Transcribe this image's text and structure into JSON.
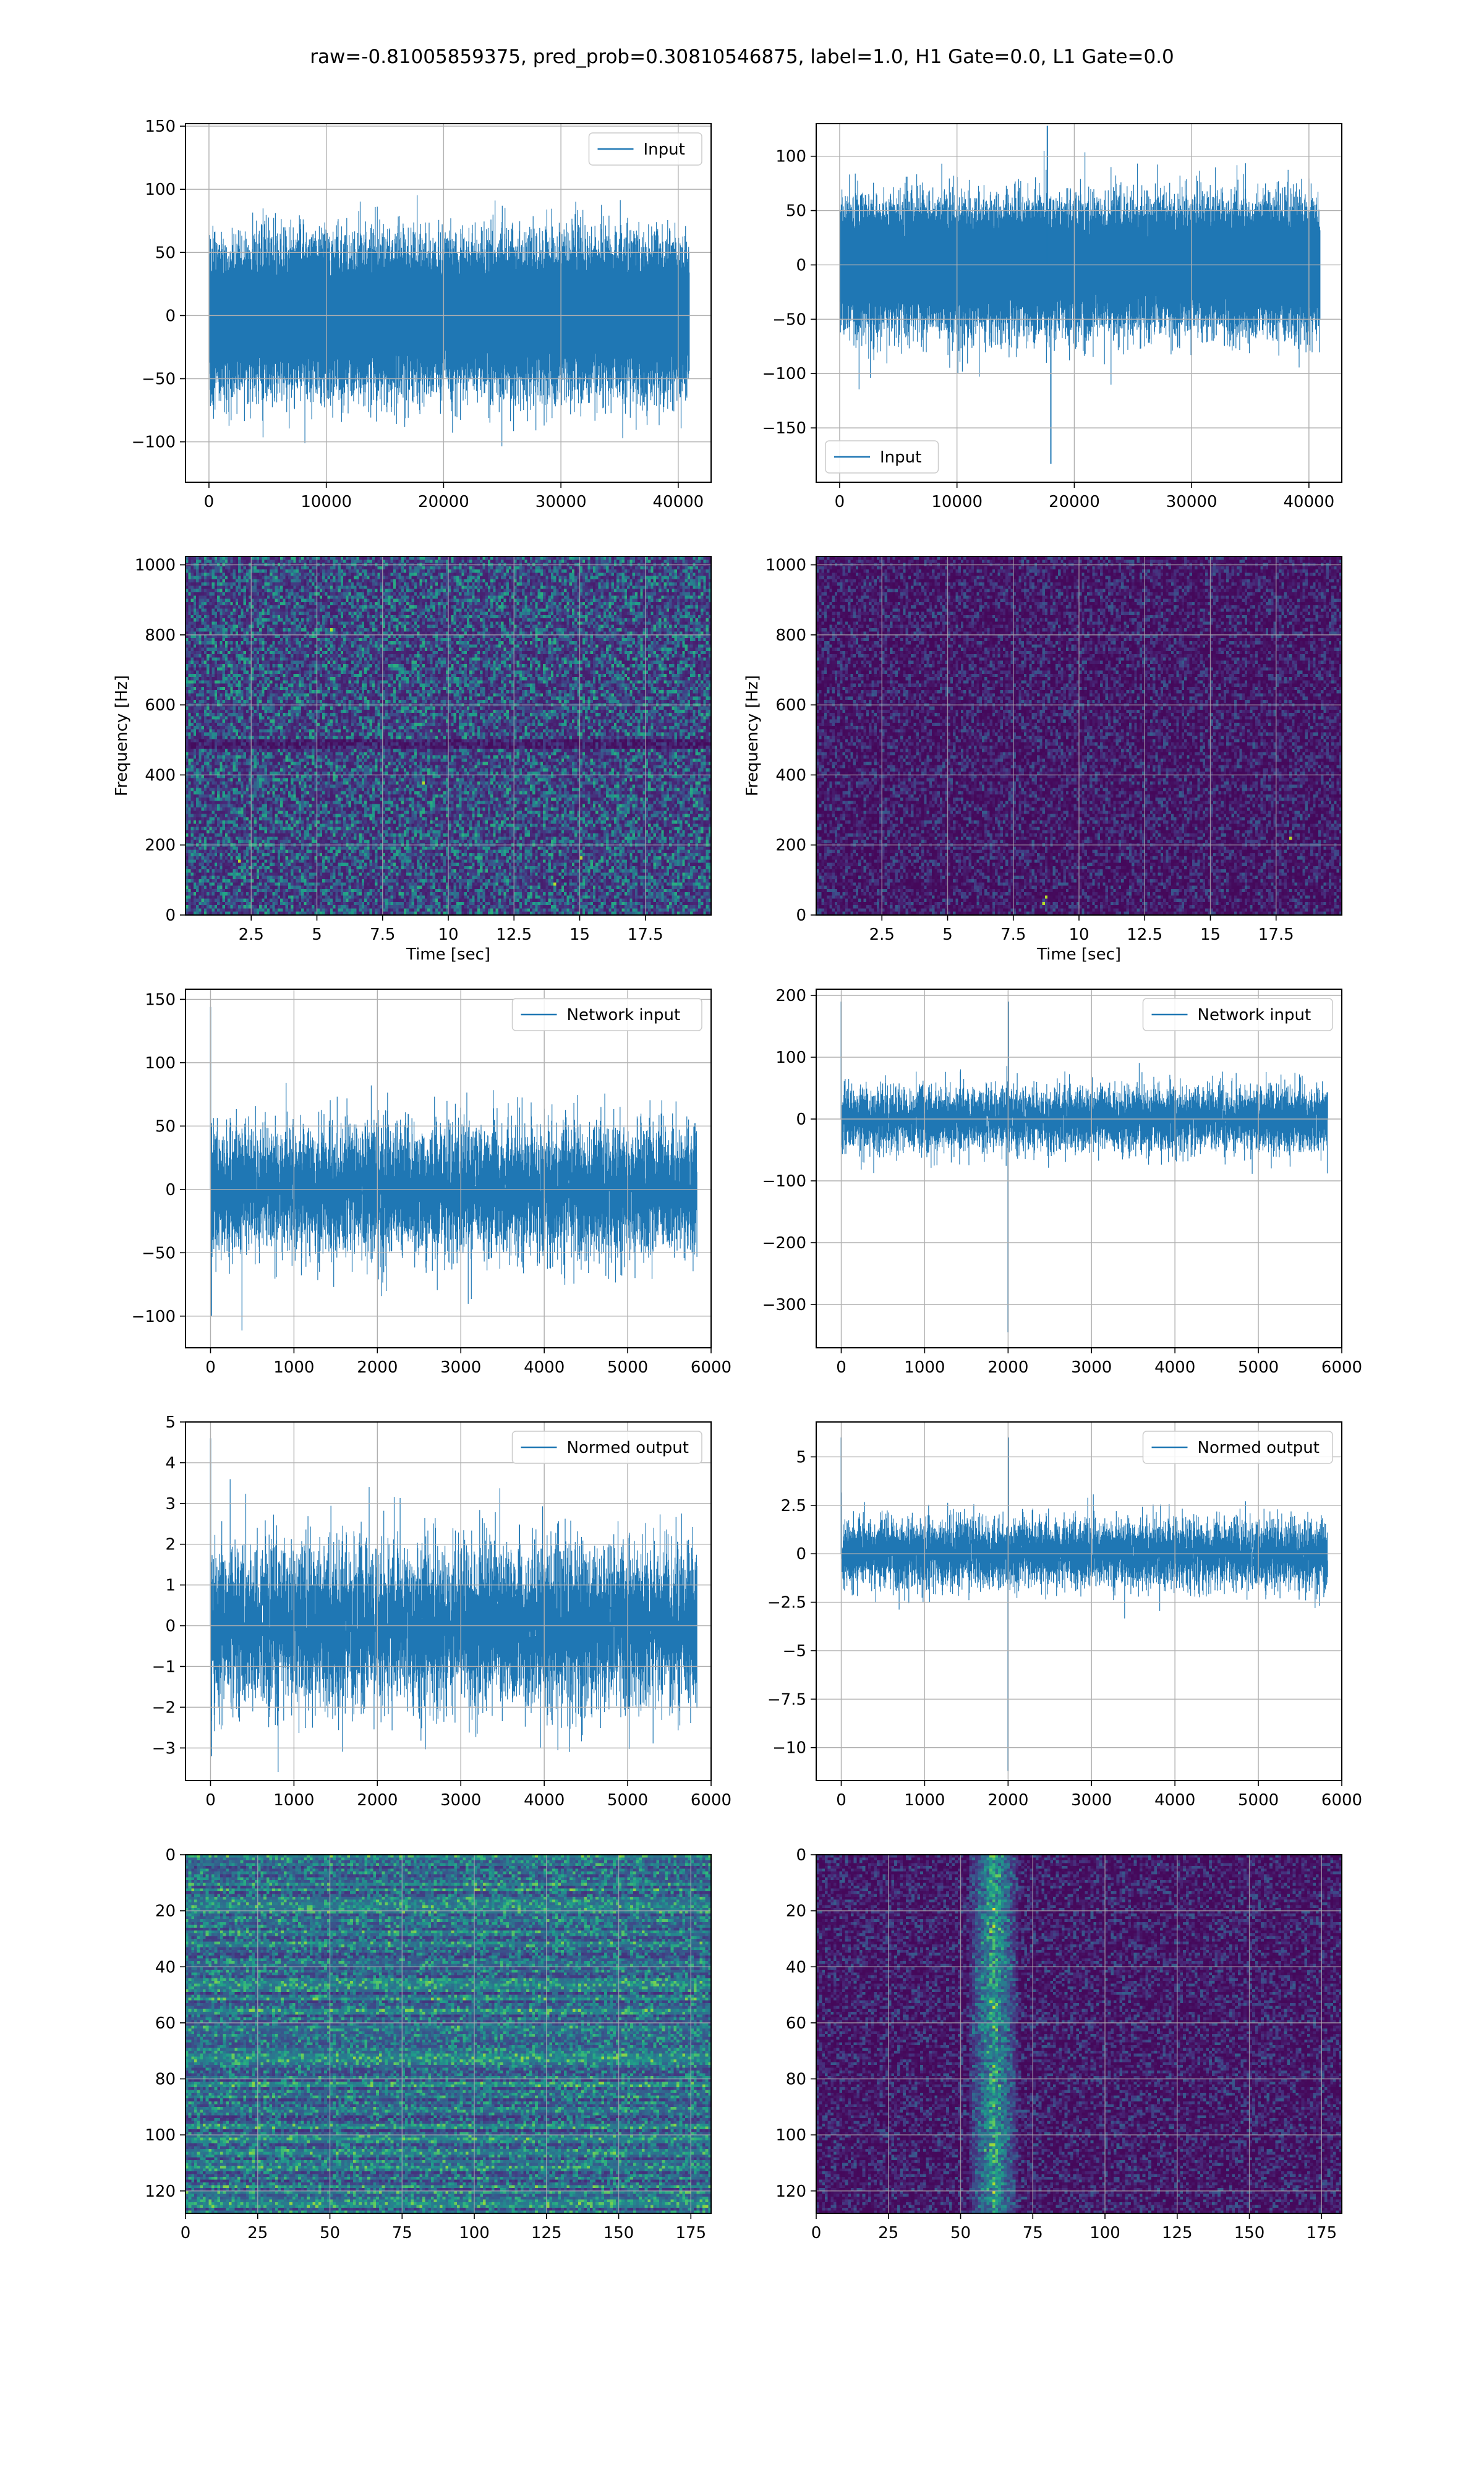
{
  "figure": {
    "suptitle": "raw=-0.81005859375, pred_prob=0.30810546875, label=1.0, H1 Gate=0.0, L1 Gate=0.0"
  },
  "chart_data": [
    {
      "id": "r0c0",
      "type": "line",
      "legend": "Input",
      "legend_loc": "upper right",
      "xlim": [
        -2000,
        42800
      ],
      "ylim": [
        -132,
        152
      ],
      "xticks": [
        0,
        10000,
        20000,
        30000,
        40000
      ],
      "yticks": [
        -100,
        -50,
        0,
        50,
        100,
        150
      ],
      "xlabel": "",
      "ylabel": "",
      "grid": true,
      "signal": {
        "n": 40960,
        "noise_std": 26,
        "spikes": []
      }
    },
    {
      "id": "r0c1",
      "type": "line",
      "legend": "Input",
      "legend_loc": "lower left",
      "xlim": [
        -2000,
        42800
      ],
      "ylim": [
        -200,
        130
      ],
      "xticks": [
        0,
        10000,
        20000,
        30000,
        40000
      ],
      "yticks": [
        -150,
        -100,
        -50,
        0,
        50,
        100
      ],
      "xlabel": "",
      "ylabel": "",
      "grid": true,
      "signal": {
        "n": 40960,
        "noise_std": 26,
        "spikes": [
          [
            18000,
            -183
          ],
          [
            17700,
            128
          ]
        ]
      }
    },
    {
      "id": "r1c0",
      "type": "heatmap",
      "subtype": "spectrogram",
      "xlim": [
        0,
        20
      ],
      "ylim": [
        0,
        1024
      ],
      "xticks": [
        2.5,
        5.0,
        7.5,
        10.0,
        12.5,
        15.0,
        17.5
      ],
      "yticks": [
        0,
        200,
        400,
        600,
        800,
        1000
      ],
      "xlabel": "Time [sec]",
      "ylabel": "Frequency [Hz]",
      "grid": true,
      "intensity": "bright",
      "bright_spots": [
        [
          2.0,
          160
        ],
        [
          14.0,
          90
        ],
        [
          15.0,
          170
        ],
        [
          5.5,
          820
        ],
        [
          9.0,
          380
        ]
      ]
    },
    {
      "id": "r1c1",
      "type": "heatmap",
      "subtype": "spectrogram",
      "xlim": [
        0,
        20
      ],
      "ylim": [
        0,
        1024
      ],
      "xticks": [
        2.5,
        5.0,
        7.5,
        10.0,
        12.5,
        15.0,
        17.5
      ],
      "yticks": [
        0,
        200,
        400,
        600,
        800,
        1000
      ],
      "xlabel": "Time [sec]",
      "ylabel": "Frequency [Hz]",
      "grid": true,
      "intensity": "dark",
      "bright_spots": [
        [
          8.6,
          40
        ],
        [
          8.7,
          60
        ],
        [
          18.0,
          220
        ]
      ]
    },
    {
      "id": "r2c0",
      "type": "line",
      "legend": "Network input",
      "legend_loc": "upper right",
      "xlim": [
        -300,
        6000
      ],
      "ylim": [
        -125,
        158
      ],
      "xticks": [
        0,
        1000,
        2000,
        3000,
        4000,
        5000,
        6000
      ],
      "yticks": [
        -100,
        -50,
        0,
        50,
        100,
        150
      ],
      "xlabel": "",
      "ylabel": "",
      "grid": true,
      "signal": {
        "n": 5832,
        "noise_std": 25,
        "spikes": [
          [
            0,
            144
          ],
          [
            10,
            -100
          ]
        ]
      }
    },
    {
      "id": "r2c1",
      "type": "line",
      "legend": "Network input",
      "legend_loc": "upper right",
      "xlim": [
        -300,
        6000
      ],
      "ylim": [
        -370,
        210
      ],
      "xticks": [
        0,
        1000,
        2000,
        3000,
        4000,
        5000,
        6000
      ],
      "yticks": [
        -300,
        -200,
        -100,
        0,
        100,
        200
      ],
      "xlabel": "",
      "ylabel": "",
      "grid": true,
      "signal": {
        "n": 5832,
        "noise_std": 25,
        "spikes": [
          [
            0,
            190
          ],
          [
            2000,
            -345
          ],
          [
            2005,
            190
          ]
        ]
      }
    },
    {
      "id": "r3c0",
      "type": "line",
      "legend": "Normed output",
      "legend_loc": "upper right",
      "xlim": [
        -300,
        6000
      ],
      "ylim": [
        -3.8,
        5.0
      ],
      "xticks": [
        0,
        1000,
        2000,
        3000,
        4000,
        5000,
        6000
      ],
      "yticks": [
        -3,
        -2,
        -1,
        0,
        1,
        2,
        3,
        4,
        5
      ],
      "xlabel": "",
      "ylabel": "",
      "grid": true,
      "signal": {
        "n": 5832,
        "noise_std": 0.95,
        "spikes": [
          [
            0,
            4.6
          ],
          [
            10,
            -3.2
          ]
        ]
      }
    },
    {
      "id": "r3c1",
      "type": "line",
      "legend": "Normed output",
      "legend_loc": "upper right",
      "xlim": [
        -300,
        6000
      ],
      "ylim": [
        -11.7,
        6.8
      ],
      "xticks": [
        0,
        1000,
        2000,
        3000,
        4000,
        5000,
        6000
      ],
      "yticks": [
        -10.0,
        -7.5,
        -5.0,
        -2.5,
        0.0,
        2.5,
        5.0
      ],
      "xlabel": "",
      "ylabel": "",
      "grid": true,
      "signal": {
        "n": 5832,
        "noise_std": 0.85,
        "spikes": [
          [
            0,
            6.0
          ],
          [
            2000,
            -11.2
          ],
          [
            2005,
            6.0
          ]
        ]
      }
    },
    {
      "id": "r4c0",
      "type": "heatmap",
      "subtype": "image",
      "xlim": [
        0,
        182
      ],
      "ylim": [
        128,
        0
      ],
      "rows": 128,
      "cols": 182,
      "xticks": [
        0,
        25,
        50,
        75,
        100,
        125,
        150,
        175
      ],
      "yticks": [
        0,
        20,
        40,
        60,
        80,
        100,
        120
      ],
      "xlabel": "",
      "ylabel": "",
      "grid": true,
      "intensity": "banded",
      "feature_cols": []
    },
    {
      "id": "r4c1",
      "type": "heatmap",
      "subtype": "image",
      "xlim": [
        0,
        182
      ],
      "ylim": [
        128,
        0
      ],
      "rows": 128,
      "cols": 182,
      "xticks": [
        0,
        25,
        50,
        75,
        100,
        125,
        150,
        175
      ],
      "yticks": [
        0,
        20,
        40,
        60,
        80,
        100,
        120
      ],
      "xlabel": "",
      "ylabel": "",
      "grid": true,
      "intensity": "dark",
      "feature_cols": [
        52,
        70
      ]
    }
  ],
  "colors": {
    "line": "#1f77b4",
    "grid": "#b0b0b0",
    "viridis": [
      "#440154",
      "#482878",
      "#3e4989",
      "#31688e",
      "#26828e",
      "#1f9e89",
      "#35b779",
      "#6ece58",
      "#b5de2b",
      "#fde725"
    ]
  }
}
